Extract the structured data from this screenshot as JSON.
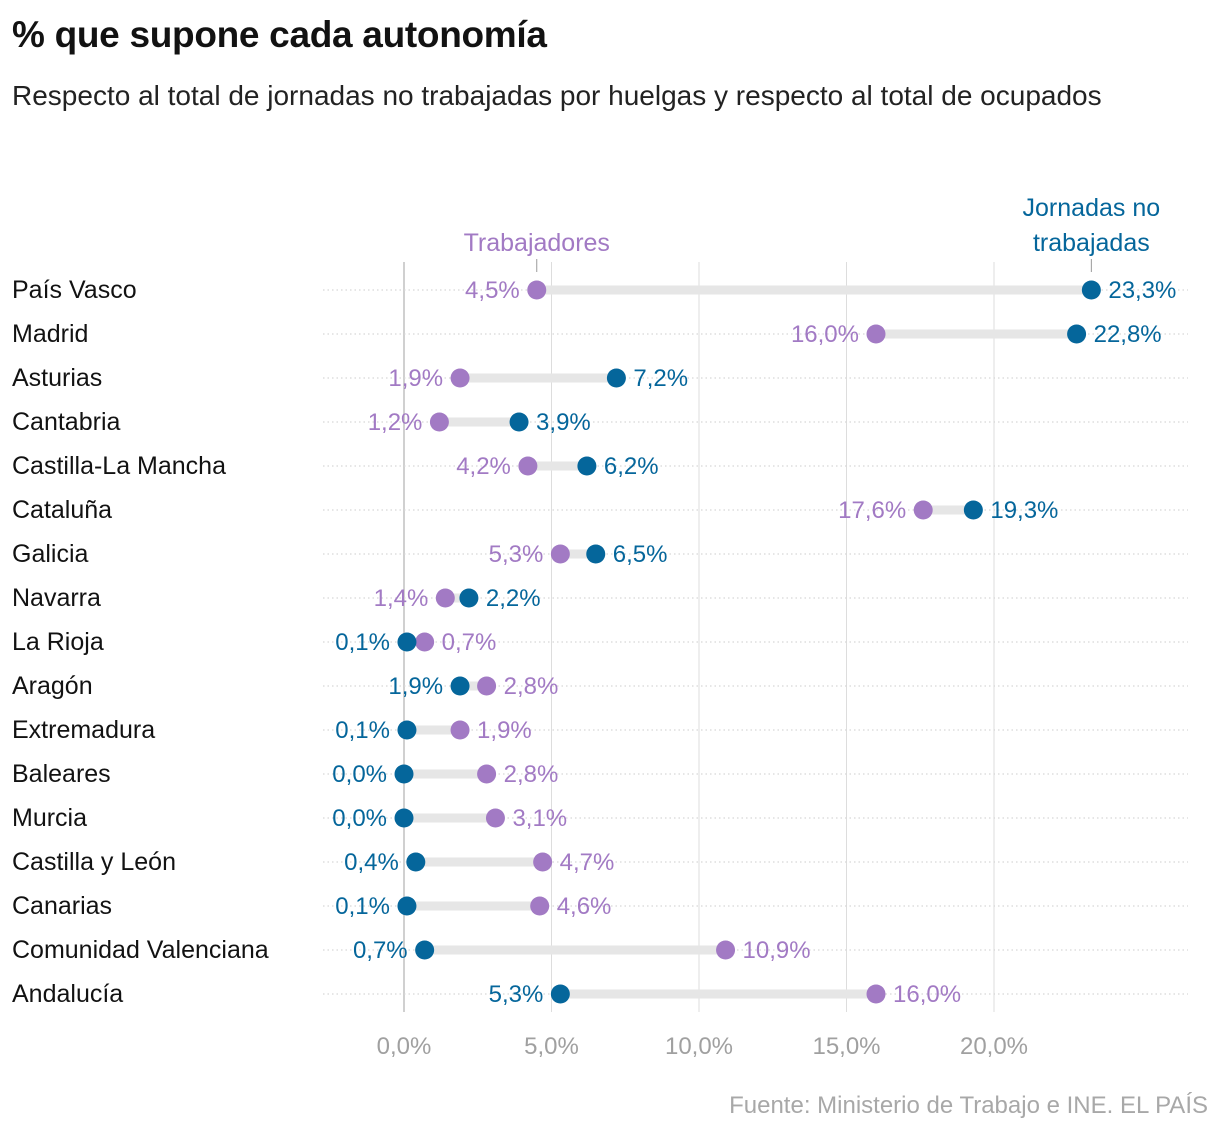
{
  "title": "% que supone cada autonomía",
  "subtitle": "Respecto al total de jornadas no trabajadas por huelgas y respecto al total de ocupados",
  "source": "Fuente: Ministerio de Trabajo e INE. EL PAÍS",
  "colors": {
    "trabajadores": "#a27ac4",
    "jornadas": "#05669b",
    "connector": "#e6e6e6",
    "grid": "#dddddd",
    "zero_line": "#c4c4c4",
    "row_dots": "#d6d6d6",
    "tick_label": "#a0a0a0"
  },
  "chart_data": {
    "type": "dumbbell",
    "xlim": [
      0,
      25
    ],
    "xticks": [
      0,
      5,
      10,
      15,
      20
    ],
    "xtick_labels": [
      "0,0%",
      "5,0%",
      "10,0%",
      "15,0%",
      "20,0%"
    ],
    "series": [
      {
        "key": "trabajadores",
        "name": "Trabajadores",
        "legend_anchor_row": 0
      },
      {
        "key": "jornadas",
        "name": "Jornadas no trabajadas",
        "legend_lines": [
          "Jornadas no",
          "trabajadas"
        ],
        "legend_anchor_row": 0
      }
    ],
    "categories": [
      "País Vasco",
      "Madrid",
      "Asturias",
      "Cantabria",
      "Castilla-La Mancha",
      "Cataluña",
      "Galicia",
      "Navarra",
      "La Rioja",
      "Aragón",
      "Extremadura",
      "Baleares",
      "Murcia",
      "Castilla y León",
      "Canarias",
      "Comunidad Valenciana",
      "Andalucía"
    ],
    "trabajadores": [
      4.5,
      16.0,
      1.9,
      1.2,
      4.2,
      17.6,
      5.3,
      1.4,
      0.7,
      2.8,
      1.9,
      2.8,
      3.1,
      4.7,
      4.6,
      10.9,
      16.0
    ],
    "jornadas": [
      23.3,
      22.8,
      7.2,
      3.9,
      6.2,
      19.3,
      6.5,
      2.2,
      0.1,
      1.9,
      0.1,
      0.0,
      0.0,
      0.4,
      0.1,
      0.7,
      5.3
    ],
    "trabajadores_labels": [
      "4,5%",
      "16,0%",
      "1,9%",
      "1,2%",
      "4,2%",
      "17,6%",
      "5,3%",
      "1,4%",
      "0,7%",
      "2,8%",
      "1,9%",
      "2,8%",
      "3,1%",
      "4,7%",
      "4,6%",
      "10,9%",
      "16,0%"
    ],
    "jornadas_labels": [
      "23,3%",
      "22,8%",
      "7,2%",
      "3,9%",
      "6,2%",
      "19,3%",
      "6,5%",
      "2,2%",
      "0,1%",
      "1,9%",
      "0,1%",
      "0,0%",
      "0,0%",
      "0,4%",
      "0,1%",
      "0,7%",
      "5,3%"
    ]
  }
}
